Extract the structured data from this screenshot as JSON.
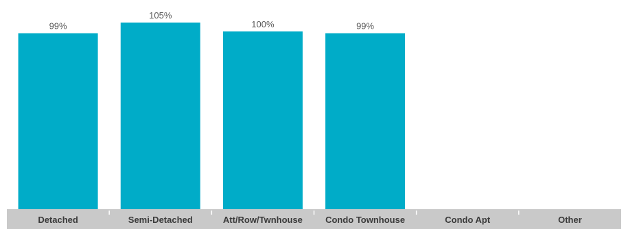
{
  "chart_data": {
    "type": "bar",
    "categories": [
      "Detached",
      "Semi-Detached",
      "Att/Row/Twnhouse",
      "Condo Townhouse",
      "Condo Apt",
      "Other"
    ],
    "values": [
      99,
      105,
      100,
      99,
      null,
      null
    ],
    "value_labels": [
      "99%",
      "105%",
      "100%",
      "99%",
      "",
      ""
    ],
    "ylim": [
      0,
      110
    ],
    "grid": false,
    "legend": "none",
    "title": "",
    "xlabel": "",
    "ylabel": "",
    "colors": {
      "bar": "#00acc8",
      "axis_band": "#c9c9c9",
      "separator": "#ffffff"
    }
  }
}
